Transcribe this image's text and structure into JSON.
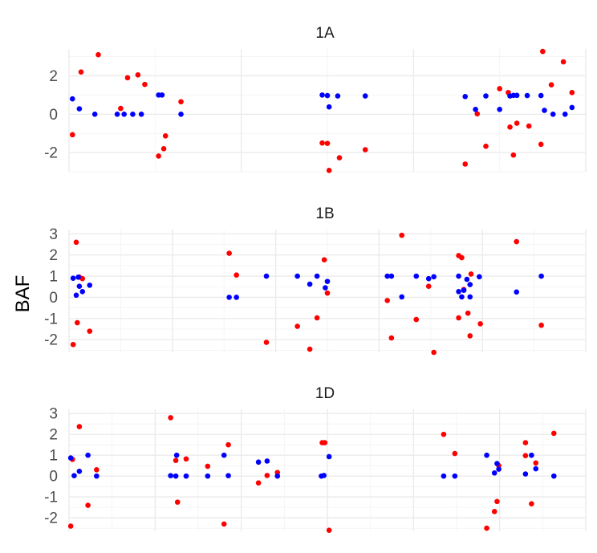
{
  "chart_data": {
    "type": "scatter",
    "ylabel": "BAF",
    "colors": {
      "blue": "#0000ff",
      "red": "#ff0000"
    },
    "panels": [
      {
        "title": "1A",
        "ylim": [
          -3.0,
          3.4
        ],
        "yticks": [
          -2,
          0,
          2
        ],
        "xlim": [
          0,
          3
        ],
        "groups": [
          {
            "blue": [
              [
                0.02,
                0.8
              ],
              [
                0.06,
                0.28
              ],
              [
                0.15,
                0.0
              ],
              [
                0.28,
                0.0
              ],
              [
                0.32,
                0.0
              ],
              [
                0.37,
                0.0
              ],
              [
                0.42,
                0.0
              ],
              [
                0.52,
                1.0
              ],
              [
                0.54,
                1.0
              ],
              [
                0.65,
                0.0
              ]
            ],
            "red": [
              [
                0.02,
                -1.07
              ],
              [
                0.07,
                2.2
              ],
              [
                0.17,
                3.1
              ],
              [
                0.3,
                0.3
              ],
              [
                0.34,
                1.9
              ],
              [
                0.4,
                2.05
              ],
              [
                0.44,
                1.55
              ],
              [
                0.52,
                -2.18
              ],
              [
                0.55,
                -1.8
              ],
              [
                0.56,
                -1.13
              ],
              [
                0.65,
                0.65
              ]
            ]
          },
          {
            "blue": [
              [
                0.47,
                1.0
              ],
              [
                0.5,
                0.97
              ],
              [
                0.51,
                0.38
              ],
              [
                0.56,
                0.95
              ],
              [
                0.72,
                0.95
              ]
            ],
            "red": [
              [
                0.47,
                -1.5
              ],
              [
                0.5,
                -1.52
              ],
              [
                0.51,
                -2.93
              ],
              [
                0.57,
                -2.27
              ],
              [
                0.72,
                -1.85
              ]
            ]
          },
          {
            "blue": [
              [
                0.3,
                0.92
              ],
              [
                0.36,
                0.25
              ],
              [
                0.42,
                0.95
              ],
              [
                0.5,
                0.25
              ],
              [
                0.56,
                0.95
              ],
              [
                0.58,
                0.98
              ],
              [
                0.6,
                0.98
              ],
              [
                0.66,
                0.97
              ],
              [
                0.74,
                0.97
              ],
              [
                0.76,
                0.2
              ],
              [
                0.81,
                0.0
              ],
              [
                0.88,
                0.0
              ],
              [
                0.92,
                0.35
              ]
            ],
            "red": [
              [
                0.3,
                -2.6
              ],
              [
                0.37,
                0.02
              ],
              [
                0.42,
                -1.67
              ],
              [
                0.5,
                1.33
              ],
              [
                0.55,
                1.13
              ],
              [
                0.56,
                -0.67
              ],
              [
                0.58,
                -2.13
              ],
              [
                0.6,
                -0.47
              ],
              [
                0.67,
                -0.62
              ],
              [
                0.74,
                -1.57
              ],
              [
                0.75,
                3.27
              ],
              [
                0.8,
                1.53
              ],
              [
                0.87,
                2.73
              ],
              [
                0.92,
                1.13
              ]
            ]
          }
        ]
      },
      {
        "title": "1B",
        "ylim": [
          -2.6,
          3.2
        ],
        "yticks": [
          -2,
          -1,
          0,
          1,
          2,
          3
        ],
        "xlim": [
          0,
          4
        ],
        "groups": [
          {
            "blue": [
              [
                0.04,
                0.9
              ],
              [
                0.07,
                0.1
              ],
              [
                0.09,
                0.95
              ],
              [
                0.1,
                0.52
              ],
              [
                0.13,
                0.27
              ],
              [
                0.2,
                0.57
              ]
            ],
            "red": [
              [
                0.04,
                -2.23
              ],
              [
                0.07,
                2.6
              ],
              [
                0.08,
                -1.2
              ],
              [
                0.1,
                0.95
              ],
              [
                0.13,
                0.88
              ],
              [
                0.2,
                -1.6
              ]
            ]
          },
          {
            "blue": [
              [
                0.55,
                0.0
              ],
              [
                0.62,
                0.0
              ],
              [
                0.91,
                1.0
              ]
            ],
            "red": [
              [
                0.55,
                2.08
              ],
              [
                0.62,
                1.05
              ],
              [
                0.91,
                -2.13
              ]
            ]
          },
          {
            "blue": [
              [
                0.21,
                1.0
              ],
              [
                0.33,
                0.62
              ],
              [
                0.4,
                1.0
              ],
              [
                0.48,
                0.45
              ],
              [
                0.5,
                0.75
              ]
            ],
            "red": [
              [
                0.21,
                -1.37
              ],
              [
                0.33,
                -2.45
              ],
              [
                0.4,
                -0.97
              ],
              [
                0.47,
                1.77
              ],
              [
                0.5,
                0.2
              ]
            ]
          },
          {
            "blue": [
              [
                0.08,
                1.0
              ],
              [
                0.12,
                1.0
              ],
              [
                0.22,
                0.02
              ],
              [
                0.36,
                1.0
              ],
              [
                0.48,
                0.88
              ],
              [
                0.53,
                0.97
              ],
              [
                0.77,
                1.0
              ],
              [
                0.77,
                0.27
              ],
              [
                0.8,
                0.02
              ],
              [
                0.82,
                0.33
              ],
              [
                0.85,
                0.85
              ],
              [
                0.88,
                0.6
              ],
              [
                0.88,
                0.02
              ],
              [
                0.97,
                0.97
              ]
            ],
            "red": [
              [
                0.08,
                -0.15
              ],
              [
                0.12,
                -1.92
              ],
              [
                0.22,
                2.93
              ],
              [
                0.36,
                -1.05
              ],
              [
                0.48,
                0.52
              ],
              [
                0.53,
                -2.6
              ],
              [
                0.77,
                1.97
              ],
              [
                0.77,
                -0.97
              ],
              [
                0.8,
                1.87
              ],
              [
                0.82,
                0.37
              ],
              [
                0.86,
                -0.75
              ],
              [
                0.88,
                -1.82
              ],
              [
                0.89,
                1.1
              ],
              [
                0.98,
                -1.25
              ]
            ]
          },
          {
            "blue": [
              [
                0.33,
                0.25
              ],
              [
                0.57,
                1.0
              ]
            ],
            "red": [
              [
                0.33,
                2.63
              ],
              [
                0.57,
                -1.32
              ]
            ]
          }
        ]
      },
      {
        "title": "1D",
        "ylim": [
          -2.65,
          3.2
        ],
        "yticks": [
          -2,
          -1,
          0,
          1,
          2,
          3
        ],
        "xlim": [
          0,
          6
        ],
        "groups": [
          {
            "blue": [
              [
                0.02,
                0.87
              ],
              [
                0.06,
                0.02
              ],
              [
                0.12,
                0.23
              ],
              [
                0.22,
                1.0
              ],
              [
                0.32,
                0.0
              ]
            ],
            "red": [
              [
                0.02,
                -2.4
              ],
              [
                0.04,
                0.8
              ],
              [
                0.12,
                2.37
              ],
              [
                0.22,
                -1.4
              ],
              [
                0.32,
                0.3
              ]
            ]
          },
          {
            "blue": [
              [
                0.18,
                0.02
              ],
              [
                0.24,
                0.0
              ],
              [
                0.25,
                1.0
              ],
              [
                0.36,
                0.0
              ],
              [
                0.61,
                0.0
              ],
              [
                0.8,
                1.0
              ],
              [
                0.85,
                0.02
              ]
            ],
            "red": [
              [
                0.18,
                2.8
              ],
              [
                0.24,
                0.75
              ],
              [
                0.26,
                -1.25
              ],
              [
                0.36,
                0.82
              ],
              [
                0.61,
                0.47
              ],
              [
                0.8,
                -2.3
              ],
              [
                0.85,
                1.5
              ]
            ]
          },
          {
            "blue": [
              [
                0.2,
                0.67
              ],
              [
                0.3,
                0.72
              ],
              [
                0.42,
                0.0
              ],
              [
                0.93,
                0.0
              ],
              [
                0.96,
                0.03
              ]
            ],
            "red": [
              [
                0.2,
                -0.33
              ],
              [
                0.3,
                0.03
              ],
              [
                0.42,
                0.17
              ],
              [
                0.94,
                1.6
              ],
              [
                0.97,
                1.6
              ]
            ]
          },
          {
            "blue": [
              [
                0.02,
                0.93
              ]
            ],
            "red": [
              [
                0.02,
                -2.6
              ]
            ]
          },
          {
            "blue": [
              [
                0.35,
                0.0
              ],
              [
                0.48,
                0.0
              ],
              [
                0.85,
                1.0
              ],
              [
                0.94,
                0.15
              ],
              [
                0.97,
                0.6
              ],
              [
                0.99,
                0.33
              ]
            ],
            "red": [
              [
                0.35,
                2.0
              ],
              [
                0.48,
                1.08
              ],
              [
                0.85,
                -2.5
              ],
              [
                0.94,
                -1.7
              ],
              [
                0.97,
                -1.22
              ],
              [
                0.99,
                0.5
              ]
            ]
          },
          {
            "blue": [
              [
                0.3,
                0.1
              ],
              [
                0.37,
                1.0
              ],
              [
                0.42,
                0.35
              ],
              [
                0.63,
                0.0
              ]
            ],
            "red": [
              [
                0.3,
                1.6
              ],
              [
                0.3,
                0.98
              ],
              [
                0.37,
                -1.33
              ],
              [
                0.42,
                0.63
              ],
              [
                0.63,
                2.05
              ]
            ]
          }
        ]
      }
    ]
  }
}
